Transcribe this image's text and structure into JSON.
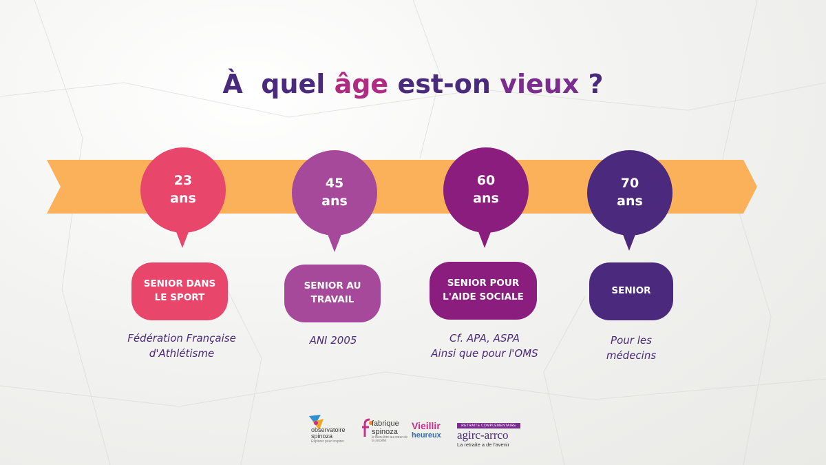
{
  "title": {
    "part1": "À",
    "part2": "quel",
    "part3": "âge",
    "part4": "est-on",
    "part5": "vieux",
    "part6": "?"
  },
  "colors": {
    "arrow": "#fbb05a",
    "c1": "#e8476b",
    "c2": "#a7499b",
    "c3": "#8b1d7e",
    "c4": "#4b2a7e",
    "title_dark": "#4a2a7c",
    "title_pink": "#b02b82",
    "title_violet": "#7a2d8c"
  },
  "milestones": [
    {
      "age": "23",
      "unit": "ans",
      "label_line1": "SENIOR DANS",
      "label_line2": "LE SPORT",
      "note_line1": "Fédération Française",
      "note_line2": "d'Athlétisme"
    },
    {
      "age": "45",
      "unit": "ans",
      "label_line1": "SENIOR AU",
      "label_line2": "TRAVAIL",
      "note_line1": "ANI 2005",
      "note_line2": ""
    },
    {
      "age": "60",
      "unit": "ans",
      "label_line1": "SENIOR POUR",
      "label_line2": "L'AIDE SOCIALE",
      "note_line1": "Cf. APA, ASPA",
      "note_line2": "Ainsi que pour l'OMS"
    },
    {
      "age": "70",
      "unit": "ans",
      "label_line1": "SENIOR",
      "label_line2": "",
      "note_line1": "Pour les",
      "note_line2": "médecins"
    }
  ],
  "logos": {
    "observatoire": {
      "line1": "observatoire",
      "line2": "spinoza",
      "tagline": "Explorer pour inspirer"
    },
    "fabrique": {
      "line1": "fabrique",
      "line2": "spinoza",
      "tagline": "le bien-être au cœur de la société"
    },
    "vieillir": {
      "line1": "Vieillir",
      "line2": "heureux"
    },
    "agirc": {
      "banner": "RETRAITE COMPLÉMENTAIRE",
      "name": "agirc-arrco",
      "tagline": "La retraite a de l'avenir"
    }
  }
}
